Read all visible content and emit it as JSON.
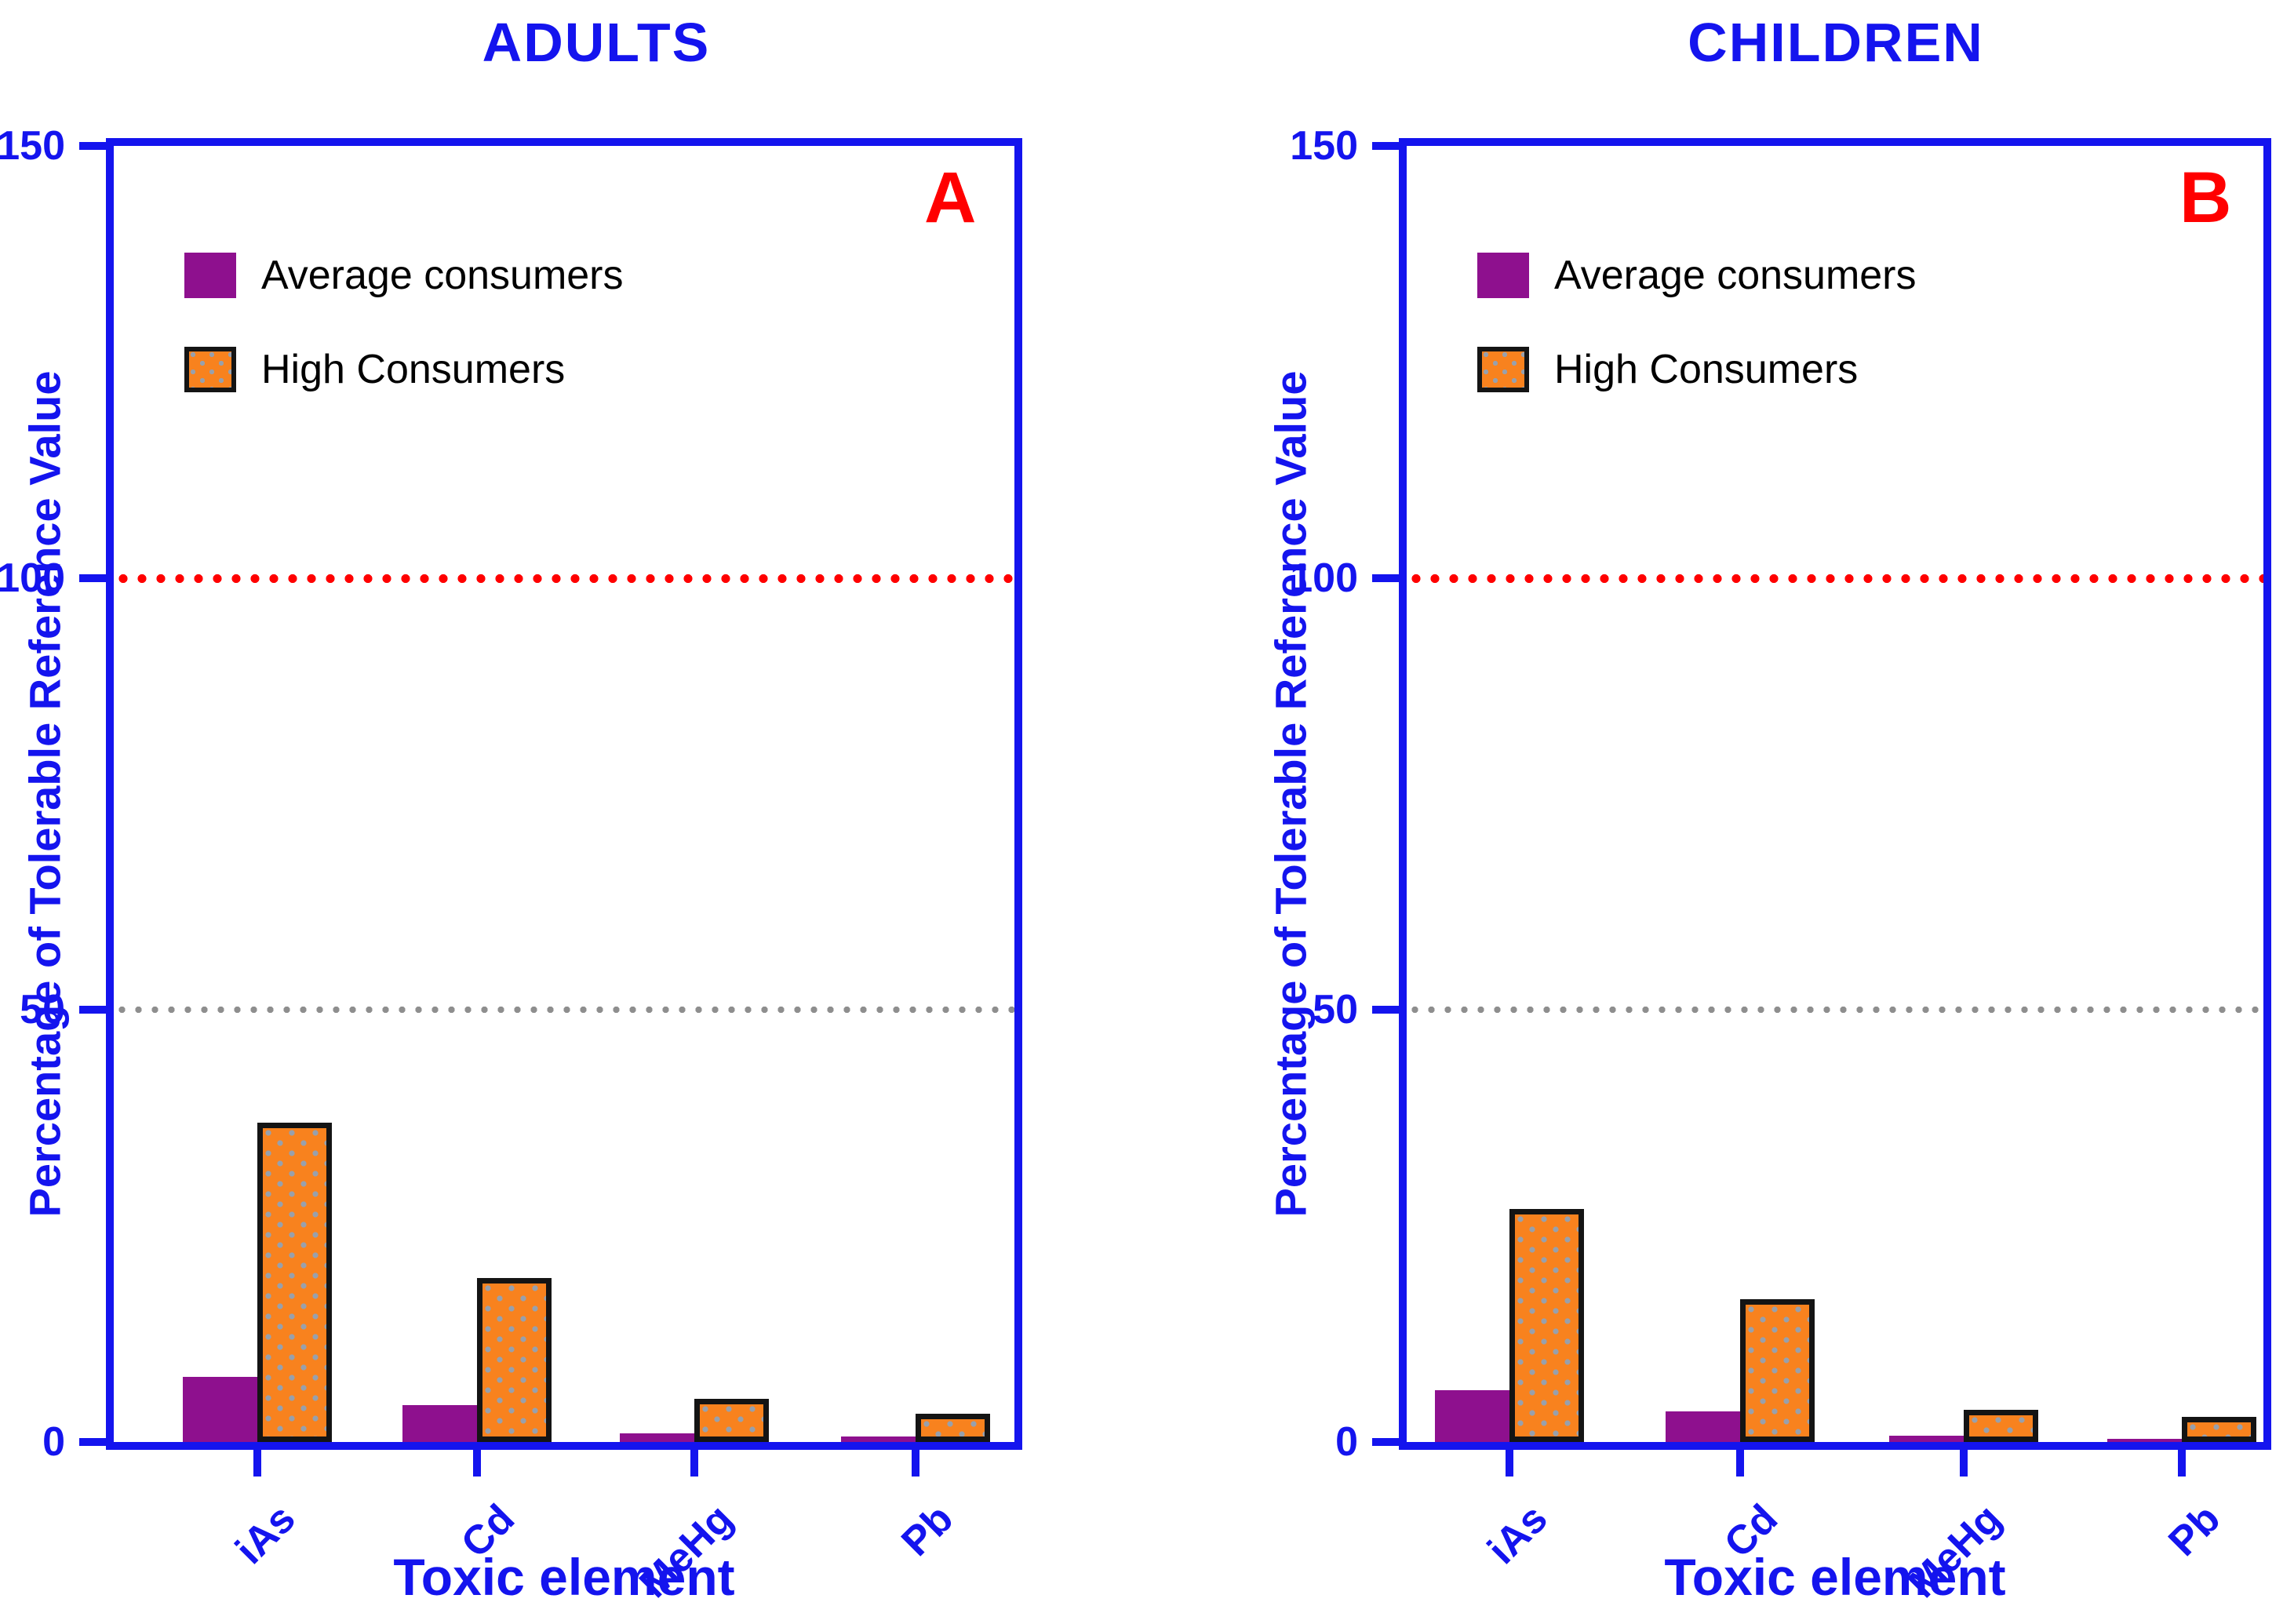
{
  "figure": {
    "background": "#FFFFFF"
  },
  "colors": {
    "axis_blue": "#1414EE",
    "bar_purple": "#8E108E",
    "bar_orange": "#F8821E",
    "orange_dot_gray": "#98A0AC",
    "bar_border_black": "#141414",
    "reference_red": "#FF0000",
    "reference_gray": "#8E8E8E",
    "panel_letter_red": "#FF0000",
    "legend_text": "#000000"
  },
  "chart_data": [
    {
      "type": "bar",
      "panel_label": "A",
      "title": "ADULTS",
      "categories": [
        "iAs",
        "Cd",
        "MeHg",
        "Pb"
      ],
      "series": [
        {
          "name": "Average consumers",
          "values": [
            7.5,
            4.3,
            1.0,
            0.6
          ]
        },
        {
          "name": "High Consumers",
          "values": [
            37.0,
            19.0,
            5.0,
            3.3
          ]
        }
      ],
      "xlabel": "Toxic element",
      "ylabel": "Percentage of Tolerable Reference Value",
      "ylim": [
        0,
        150
      ],
      "yticks": [
        0,
        50,
        100,
        150
      ],
      "reference_lines": [
        {
          "y": 100,
          "color": "#FF0000",
          "style": "dotted"
        },
        {
          "y": 50,
          "color": "#8E8E8E",
          "style": "dotted"
        }
      ],
      "legend_position": "top-left",
      "grid": false
    },
    {
      "type": "bar",
      "panel_label": "B",
      "title": "CHILDREN",
      "categories": [
        "iAs",
        "Cd",
        "MeHg",
        "Pb"
      ],
      "series": [
        {
          "name": "Average consumers",
          "values": [
            6.0,
            3.5,
            0.7,
            0.35
          ]
        },
        {
          "name": "High Consumers",
          "values": [
            27.0,
            16.5,
            3.7,
            2.9
          ]
        }
      ],
      "xlabel": "Toxic element",
      "ylabel": "Percentage of Tolerable Reference Value",
      "ylim": [
        0,
        150
      ],
      "yticks": [
        0,
        50,
        100,
        150
      ],
      "reference_lines": [
        {
          "y": 100,
          "color": "#FF0000",
          "style": "dotted"
        },
        {
          "y": 50,
          "color": "#8E8E8E",
          "style": "dotted"
        }
      ],
      "legend_position": "top-left",
      "grid": false
    }
  ]
}
